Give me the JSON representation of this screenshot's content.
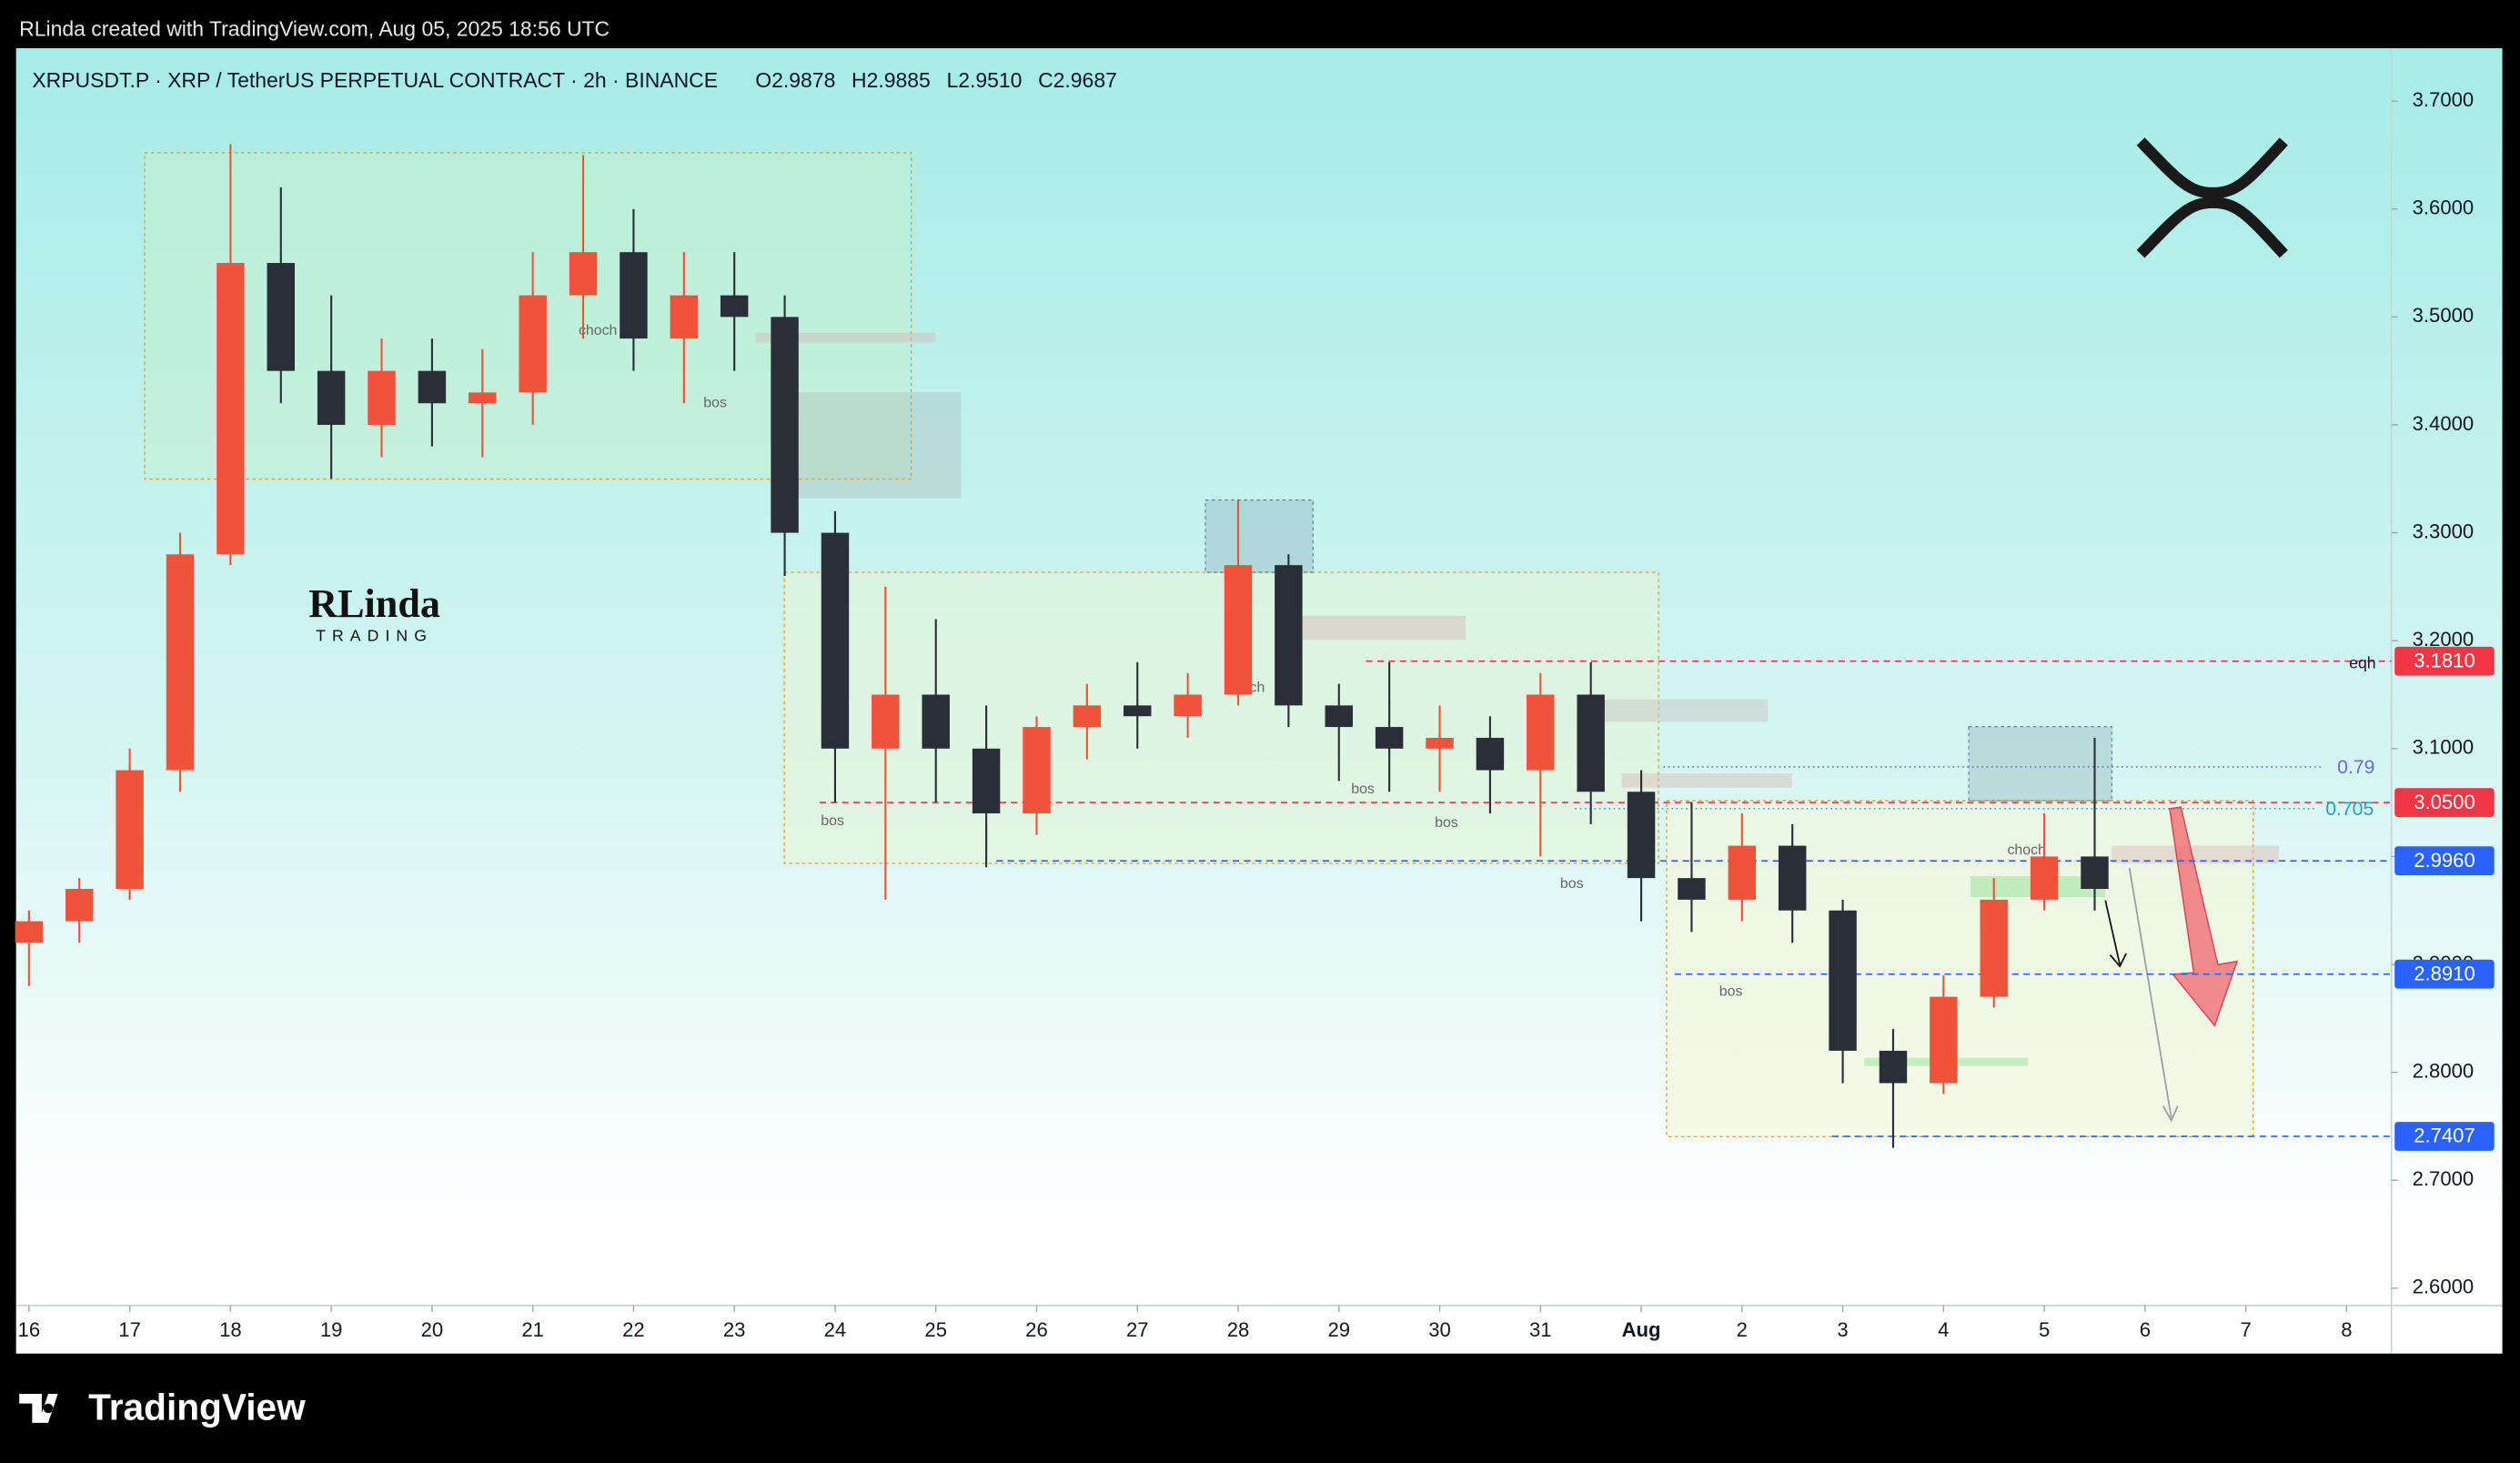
{
  "header": {
    "attribution": "RLinda created with TradingView.com, Aug 05, 2025 18:56 UTC"
  },
  "chart_data": {
    "type": "candlestick",
    "title": "XRPUSDT.P · XRP / TetherUS PERPETUAL CONTRACT · 2h · BINANCE",
    "ohlc_labels": [
      "O2.9878",
      "H2.9885",
      "L2.9510",
      "C2.9687"
    ],
    "x": [
      0,
      0.5,
      1,
      1.5,
      2,
      2.5,
      3,
      3.5,
      4,
      4.5,
      5,
      5.5,
      6,
      6.5,
      7,
      7.5,
      8,
      8.5,
      9,
      9.5,
      10,
      10.5,
      11,
      11.5,
      12,
      12.5,
      13,
      13.5,
      14,
      14.5,
      15,
      15.5,
      16,
      16.5,
      17,
      17.5,
      18,
      18.5,
      19,
      19.5,
      20,
      20.5
    ],
    "open": [
      2.92,
      2.94,
      2.97,
      3.08,
      3.28,
      3.55,
      3.45,
      3.4,
      3.45,
      3.42,
      3.43,
      3.52,
      3.56,
      3.48,
      3.52,
      3.5,
      3.3,
      3.1,
      3.15,
      3.1,
      3.04,
      3.12,
      3.14,
      3.13,
      3.15,
      3.27,
      3.14,
      3.12,
      3.1,
      3.11,
      3.08,
      3.15,
      3.06,
      2.98,
      2.96,
      3.01,
      2.95,
      2.82,
      2.79,
      2.87,
      2.96,
      3.0
    ],
    "high": [
      2.95,
      2.98,
      3.1,
      3.3,
      3.66,
      3.62,
      3.52,
      3.48,
      3.48,
      3.47,
      3.56,
      3.65,
      3.6,
      3.56,
      3.56,
      3.52,
      3.32,
      3.25,
      3.22,
      3.14,
      3.13,
      3.16,
      3.18,
      3.17,
      3.33,
      3.28,
      3.16,
      3.18,
      3.14,
      3.13,
      3.17,
      3.18,
      3.08,
      3.05,
      3.04,
      3.03,
      2.96,
      2.84,
      2.89,
      2.98,
      3.04,
      3.11
    ],
    "low": [
      2.88,
      2.92,
      2.96,
      3.06,
      3.27,
      3.42,
      3.35,
      3.37,
      3.38,
      3.37,
      3.4,
      3.48,
      3.45,
      3.42,
      3.45,
      3.26,
      3.05,
      2.96,
      3.05,
      2.99,
      3.02,
      3.09,
      3.1,
      3.11,
      3.14,
      3.12,
      3.07,
      3.06,
      3.06,
      3.04,
      3.0,
      3.03,
      2.94,
      2.93,
      2.94,
      2.92,
      2.79,
      2.73,
      2.78,
      2.86,
      2.95,
      2.95
    ],
    "close": [
      2.94,
      2.97,
      3.08,
      3.28,
      3.55,
      3.45,
      3.4,
      3.45,
      3.42,
      3.43,
      3.52,
      3.56,
      3.48,
      3.52,
      3.5,
      3.3,
      3.1,
      3.15,
      3.1,
      3.04,
      3.12,
      3.14,
      3.13,
      3.15,
      3.27,
      3.14,
      3.12,
      3.1,
      3.11,
      3.08,
      3.15,
      3.06,
      2.98,
      2.96,
      3.01,
      2.95,
      2.82,
      2.79,
      2.87,
      2.96,
      3.0,
      2.97
    ],
    "up_color": "#f0533a",
    "down_color": "#2a2e39",
    "xlim": [
      -0.128,
      23.445
    ],
    "ylim": [
      2.584,
      3.749
    ],
    "xticks": [
      {
        "value": 0,
        "label": "16"
      },
      {
        "value": 1,
        "label": "17"
      },
      {
        "value": 2,
        "label": "18"
      },
      {
        "value": 3,
        "label": "19"
      },
      {
        "value": 4,
        "label": "20"
      },
      {
        "value": 5,
        "label": "21"
      },
      {
        "value": 6,
        "label": "22"
      },
      {
        "value": 7,
        "label": "23"
      },
      {
        "value": 8,
        "label": "24"
      },
      {
        "value": 9,
        "label": "25"
      },
      {
        "value": 10,
        "label": "26"
      },
      {
        "value": 11,
        "label": "27"
      },
      {
        "value": 12,
        "label": "28"
      },
      {
        "value": 13,
        "label": "29"
      },
      {
        "value": 14,
        "label": "30"
      },
      {
        "value": 15,
        "label": "31"
      },
      {
        "value": 16,
        "label": "Aug"
      },
      {
        "value": 17,
        "label": "2"
      },
      {
        "value": 18,
        "label": "3"
      },
      {
        "value": 19,
        "label": "4"
      },
      {
        "value": 20,
        "label": "5"
      },
      {
        "value": 21,
        "label": "6"
      },
      {
        "value": 22,
        "label": "7"
      },
      {
        "value": 23,
        "label": "8"
      }
    ],
    "yticks": [
      {
        "value": 2.6,
        "label": "2.6000"
      },
      {
        "value": 2.7,
        "label": "2.7000"
      },
      {
        "value": 2.8,
        "label": "2.8000"
      },
      {
        "value": 2.9,
        "label": "2.9000"
      },
      {
        "value": 3.0,
        "label": "3.0000"
      },
      {
        "value": 3.1,
        "label": "3.1000"
      },
      {
        "value": 3.2,
        "label": "3.2000"
      },
      {
        "value": 3.3,
        "label": "3.3000"
      },
      {
        "value": 3.4,
        "label": "3.4000"
      },
      {
        "value": 3.5,
        "label": "3.5000"
      },
      {
        "value": 3.6,
        "label": "3.6000"
      },
      {
        "value": 3.7,
        "label": "3.7000"
      }
    ],
    "price_lines": [
      {
        "value": 3.181,
        "label": "3.1810",
        "color": "#f23645"
      },
      {
        "value": 3.05,
        "label": "3.0500",
        "color": "#f23645"
      },
      {
        "value": 2.996,
        "label": "2.9960",
        "color": "#2962ff"
      },
      {
        "value": 2.891,
        "label": "2.8910",
        "color": "#2962ff"
      },
      {
        "value": 2.7407,
        "label": "2.7407",
        "color": "#2962ff"
      }
    ],
    "annotations": [
      "eqh",
      "0.79",
      "0.705",
      "choch",
      "choch",
      "choch",
      "bos",
      "bos",
      "bos",
      "bos",
      "bos",
      "bos"
    ]
  },
  "watermark": {
    "line1": "RLinda",
    "line2": "TRADING"
  },
  "footer": {
    "brand": "TradingView"
  }
}
